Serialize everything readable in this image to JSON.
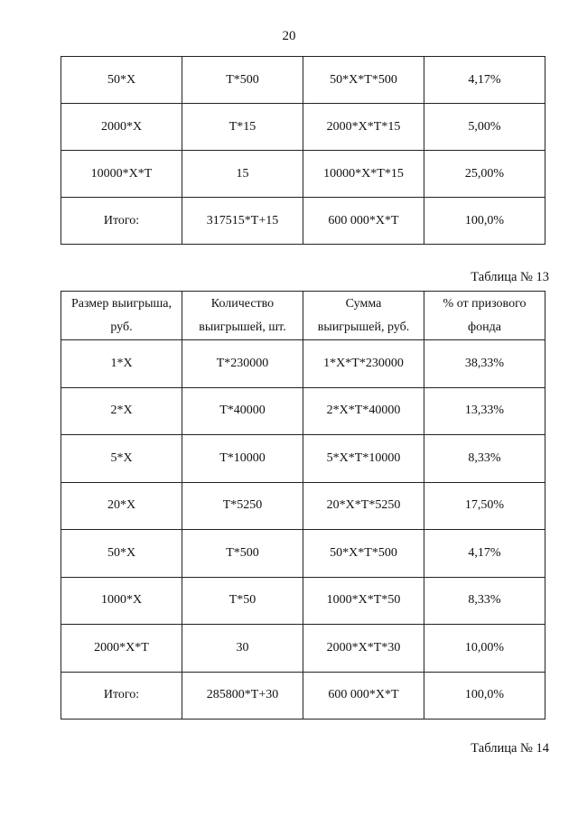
{
  "page_number": "20",
  "table_top": {
    "rows": [
      [
        "50*X",
        "T*500",
        "50*X*T*500",
        "4,17%"
      ],
      [
        "2000*X",
        "T*15",
        "2000*X*T*15",
        "5,00%"
      ],
      [
        "10000*X*T",
        "15",
        "10000*X*T*15",
        "25,00%"
      ],
      [
        "Итого:",
        "317515*T+15",
        "600 000*X*T",
        "100,0%"
      ]
    ]
  },
  "table13": {
    "caption": "Таблица № 13",
    "headers": [
      [
        "Размер выигрыша,",
        "руб."
      ],
      [
        "Количество",
        "выигрышей, шт."
      ],
      [
        "Сумма",
        "выигрышей, руб."
      ],
      [
        "% от призового",
        "фонда"
      ]
    ],
    "rows": [
      [
        "1*X",
        "T*230000",
        "1*X*T*230000",
        "38,33%"
      ],
      [
        "2*X",
        "T*40000",
        "2*X*T*40000",
        "13,33%"
      ],
      [
        "5*X",
        "T*10000",
        "5*X*T*10000",
        "8,33%"
      ],
      [
        "20*X",
        "T*5250",
        "20*X*T*5250",
        "17,50%"
      ],
      [
        "50*X",
        "T*500",
        "50*X*T*500",
        "4,17%"
      ],
      [
        "1000*X",
        "T*50",
        "1000*X*T*50",
        "8,33%"
      ],
      [
        "2000*X*T",
        "30",
        "2000*X*T*30",
        "10,00%"
      ],
      [
        "Итого:",
        "285800*T+30",
        "600 000*X*T",
        "100,0%"
      ]
    ]
  },
  "table14": {
    "caption": "Таблица № 14"
  }
}
